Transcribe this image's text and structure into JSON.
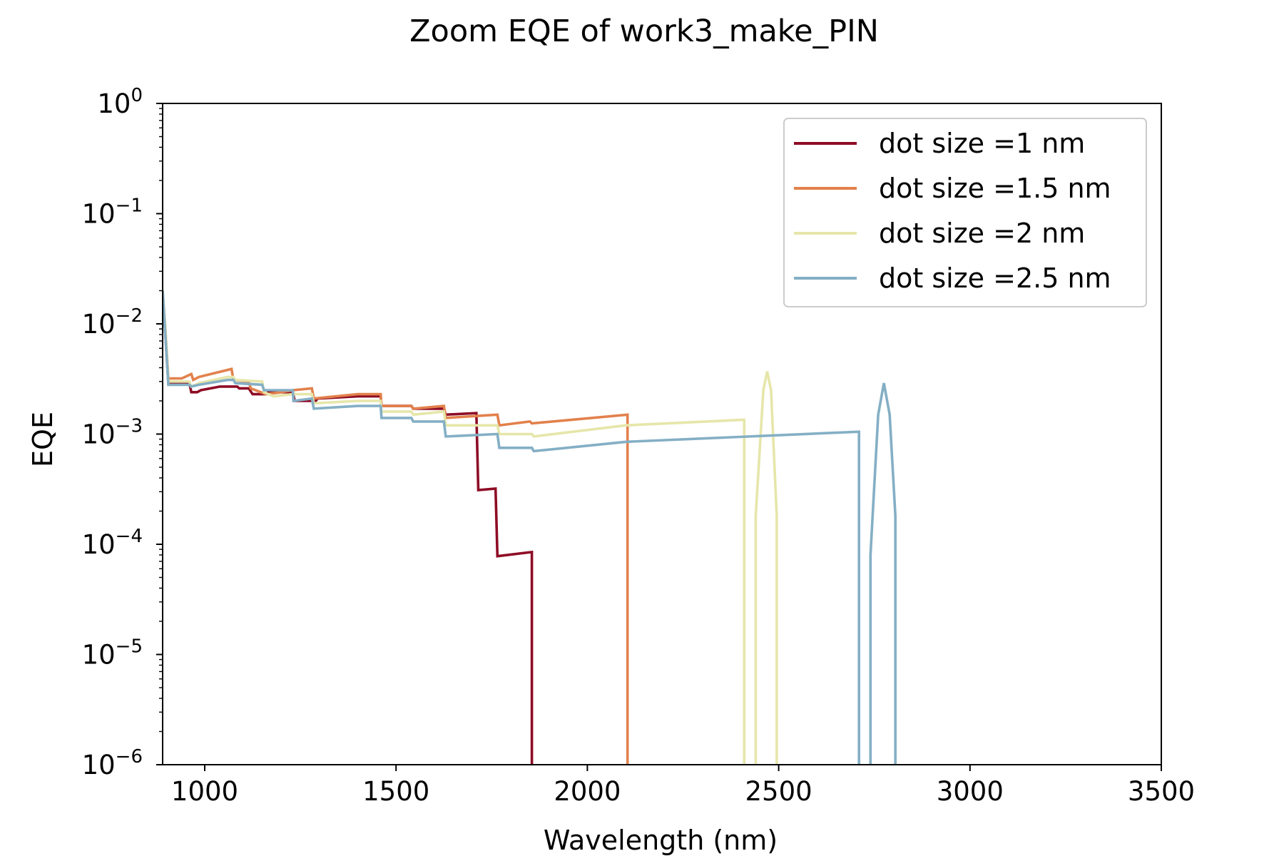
{
  "chart_data": {
    "type": "line",
    "title": "Zoom EQE of work3_make_PIN",
    "xlabel": "Wavelength (nm)",
    "ylabel": "EQE",
    "xlim": [
      890,
      3500
    ],
    "ylim": [
      1e-06,
      1
    ],
    "yscale": "log",
    "x_ticks": [
      1000,
      1500,
      2000,
      2500,
      3000,
      3500
    ],
    "x_tick_labels": [
      "1000",
      "1500",
      "2000",
      "2500",
      "3000",
      "3500"
    ],
    "y_ticks": [
      {
        "value": 1e-06,
        "base": "10",
        "exp": "−6"
      },
      {
        "value": 1e-05,
        "base": "10",
        "exp": "−5"
      },
      {
        "value": 0.0001,
        "base": "10",
        "exp": "−4"
      },
      {
        "value": 0.001,
        "base": "10",
        "exp": "−3"
      },
      {
        "value": 0.01,
        "base": "10",
        "exp": "−2"
      },
      {
        "value": 0.1,
        "base": "10",
        "exp": "−1"
      },
      {
        "value": 1,
        "base": "10",
        "exp": "0"
      }
    ],
    "grid": false,
    "legend_position": "top-right",
    "series": [
      {
        "name": "dot size =1 nm",
        "color": "#8e0c25",
        "points": [
          [
            890,
            0.02
          ],
          [
            897,
            0.008
          ],
          [
            905,
            0.0029
          ],
          [
            960,
            0.0029
          ],
          [
            965,
            0.0024
          ],
          [
            980,
            0.0024
          ],
          [
            990,
            0.0025
          ],
          [
            1040,
            0.0027
          ],
          [
            1085,
            0.0027
          ],
          [
            1090,
            0.0026
          ],
          [
            1115,
            0.0026
          ],
          [
            1125,
            0.0023
          ],
          [
            1160,
            0.0023
          ],
          [
            1165,
            0.0024
          ],
          [
            1230,
            0.0024
          ],
          [
            1235,
            0.002
          ],
          [
            1290,
            0.002
          ],
          [
            1295,
            0.0021
          ],
          [
            1400,
            0.0022
          ],
          [
            1460,
            0.0022
          ],
          [
            1462,
            0.0018
          ],
          [
            1540,
            0.0018
          ],
          [
            1545,
            0.0017
          ],
          [
            1625,
            0.0017
          ],
          [
            1630,
            0.0015
          ],
          [
            1710,
            0.00155
          ],
          [
            1715,
            0.00031
          ],
          [
            1760,
            0.00032
          ],
          [
            1765,
            7.8e-05
          ],
          [
            1855,
            8.5e-05
          ],
          [
            1855,
            1e-06
          ]
        ]
      },
      {
        "name": "dot size =1.5 nm",
        "color": "#e2814c",
        "points": [
          [
            890,
            0.02
          ],
          [
            897,
            0.009
          ],
          [
            905,
            0.0032
          ],
          [
            940,
            0.0032
          ],
          [
            965,
            0.0035
          ],
          [
            970,
            0.0031
          ],
          [
            985,
            0.0033
          ],
          [
            1070,
            0.0039
          ],
          [
            1075,
            0.0031
          ],
          [
            1115,
            0.003
          ],
          [
            1120,
            0.0026
          ],
          [
            1160,
            0.0023
          ],
          [
            1200,
            0.0024
          ],
          [
            1230,
            0.0025
          ],
          [
            1280,
            0.0026
          ],
          [
            1285,
            0.0021
          ],
          [
            1400,
            0.0023
          ],
          [
            1460,
            0.0023
          ],
          [
            1462,
            0.0018
          ],
          [
            1540,
            0.0018
          ],
          [
            1545,
            0.0017
          ],
          [
            1625,
            0.0018
          ],
          [
            1630,
            0.0014
          ],
          [
            1765,
            0.0015
          ],
          [
            1770,
            0.0012
          ],
          [
            1850,
            0.0013
          ],
          [
            1855,
            0.00125
          ],
          [
            2105,
            0.0015
          ],
          [
            2105,
            1e-06
          ]
        ]
      },
      {
        "name": "dot size =2 nm",
        "color": "#e6e6aa",
        "points": [
          [
            890,
            0.02
          ],
          [
            897,
            0.009
          ],
          [
            905,
            0.003
          ],
          [
            960,
            0.003
          ],
          [
            965,
            0.0027
          ],
          [
            985,
            0.0029
          ],
          [
            1060,
            0.0033
          ],
          [
            1075,
            0.0033
          ],
          [
            1080,
            0.0031
          ],
          [
            1150,
            0.003
          ],
          [
            1155,
            0.0024
          ],
          [
            1180,
            0.0022
          ],
          [
            1230,
            0.0023
          ],
          [
            1280,
            0.0023
          ],
          [
            1285,
            0.0019
          ],
          [
            1400,
            0.002
          ],
          [
            1460,
            0.002
          ],
          [
            1462,
            0.0016
          ],
          [
            1540,
            0.0016
          ],
          [
            1545,
            0.0015
          ],
          [
            1625,
            0.0016
          ],
          [
            1630,
            0.0012
          ],
          [
            1765,
            0.0012
          ],
          [
            1770,
            0.001
          ],
          [
            1855,
            0.001
          ],
          [
            1860,
            0.00095
          ],
          [
            2100,
            0.0012
          ],
          [
            2410,
            0.00135
          ],
          [
            2410,
            1e-06
          ],
          "break",
          [
            2440,
            1e-06
          ],
          [
            2440,
            0.00018
          ],
          [
            2460,
            0.0025
          ],
          [
            2470,
            0.0037
          ],
          [
            2480,
            0.0025
          ],
          [
            2495,
            0.00018
          ],
          [
            2495,
            1e-06
          ]
        ]
      },
      {
        "name": "dot size =2.5 nm",
        "color": "#84afc5",
        "points": [
          [
            890,
            0.02
          ],
          [
            897,
            0.008
          ],
          [
            905,
            0.0028
          ],
          [
            960,
            0.0028
          ],
          [
            965,
            0.0027
          ],
          [
            985,
            0.0028
          ],
          [
            1060,
            0.0031
          ],
          [
            1075,
            0.0031
          ],
          [
            1080,
            0.0029
          ],
          [
            1150,
            0.0028
          ],
          [
            1155,
            0.0025
          ],
          [
            1230,
            0.0025
          ],
          [
            1232,
            0.002
          ],
          [
            1280,
            0.0021
          ],
          [
            1285,
            0.0017
          ],
          [
            1400,
            0.0018
          ],
          [
            1460,
            0.0018
          ],
          [
            1462,
            0.0014
          ],
          [
            1540,
            0.0014
          ],
          [
            1545,
            0.0013
          ],
          [
            1625,
            0.0013
          ],
          [
            1630,
            0.00095
          ],
          [
            1765,
            0.001
          ],
          [
            1770,
            0.00075
          ],
          [
            1855,
            0.00075
          ],
          [
            1860,
            0.0007
          ],
          [
            2100,
            0.00085
          ],
          [
            2710,
            0.00105
          ],
          [
            2710,
            1e-06
          ],
          "break",
          [
            2740,
            1e-06
          ],
          [
            2740,
            8e-05
          ],
          [
            2760,
            0.0015
          ],
          [
            2775,
            0.0029
          ],
          [
            2790,
            0.0015
          ],
          [
            2805,
            0.00018
          ],
          [
            2805,
            1e-06
          ]
        ]
      }
    ]
  }
}
